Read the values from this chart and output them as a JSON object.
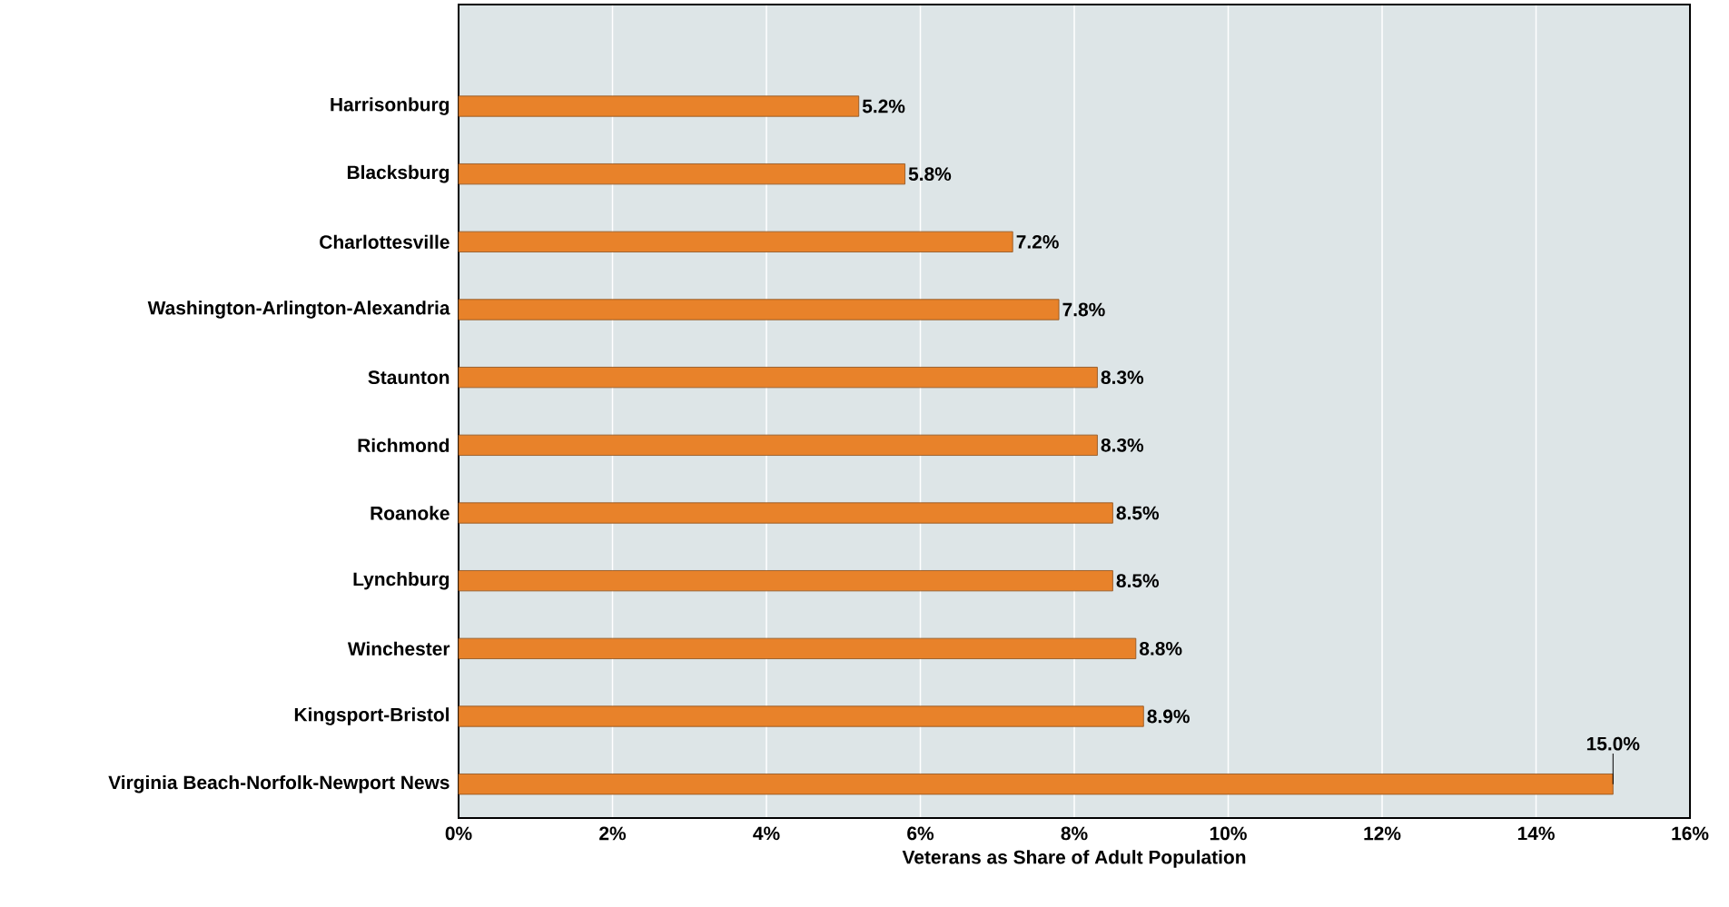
{
  "chart_data": {
    "type": "bar",
    "orientation": "horizontal",
    "xlabel": "Veterans as Share of Adult Population",
    "categories": [
      "Harrisonburg",
      "Blacksburg",
      "Charlottesville",
      "Washington-Arlington-Alexandria",
      "Staunton",
      "Richmond",
      "Roanoke",
      "Lynchburg",
      "Winchester",
      "Kingsport-Bristol",
      "Virginia Beach-Norfolk-Newport News"
    ],
    "values": [
      5.2,
      5.8,
      7.2,
      7.8,
      8.3,
      8.3,
      8.5,
      8.5,
      8.8,
      8.9,
      15.0
    ],
    "value_labels": [
      "5.2%",
      "5.8%",
      "7.2%",
      "7.8%",
      "8.3%",
      "8.3%",
      "8.5%",
      "8.5%",
      "8.8%",
      "8.9%",
      "15.0%"
    ],
    "color": "#e8822a",
    "xlim": [
      0,
      16
    ],
    "xticks": [
      {
        "value": 0,
        "label": "0%"
      },
      {
        "value": 2,
        "label": "2%"
      },
      {
        "value": 4,
        "label": "4%"
      },
      {
        "value": 6,
        "label": "6%"
      },
      {
        "value": 8,
        "label": "8%"
      },
      {
        "value": 10,
        "label": "10%"
      },
      {
        "value": 12,
        "label": "12%"
      },
      {
        "value": 14,
        "label": "14%"
      },
      {
        "value": 16,
        "label": "16%"
      }
    ],
    "grid": "x"
  }
}
